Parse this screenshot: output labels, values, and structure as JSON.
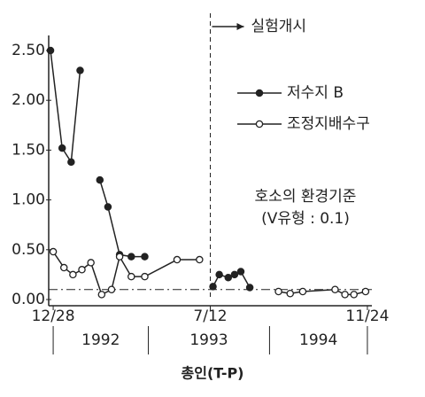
{
  "chart_data": {
    "type": "line",
    "title": "총인(T-P)",
    "xlim": [
      -0.5,
      35.5
    ],
    "xticks": [
      {
        "value": 0,
        "label": "12/28"
      },
      {
        "value": 17.5,
        "label": "7/12"
      },
      {
        "value": 35,
        "label": "11/24"
      }
    ],
    "periods": [
      {
        "label": "1992",
        "start": 0,
        "end": 10.6
      },
      {
        "label": "1993",
        "start": 10.6,
        "end": 24.1
      },
      {
        "label": "1994",
        "start": 24.1,
        "end": 35
      }
    ],
    "ylim": [
      0,
      2.5
    ],
    "yticks": [
      {
        "value": 0,
        "label": "0.00"
      },
      {
        "value": 0.5,
        "label": "0.50"
      },
      {
        "value": 1,
        "label": "1.00"
      },
      {
        "value": 1.5,
        "label": "1.50"
      },
      {
        "value": 2,
        "label": "2.00"
      },
      {
        "value": 2.5,
        "label": "2.50"
      }
    ],
    "event": {
      "x": 17.5,
      "label": "실험개시"
    },
    "reference": {
      "y": 0.1,
      "label": [
        "호소의  환경기준",
        "(V유형 : 0.1)"
      ]
    },
    "series": [
      {
        "name": "저수지 B",
        "color": "#222",
        "marker": "filled",
        "x": [
          -0.3,
          1.0,
          2.0,
          3.0,
          4.0,
          5.2,
          6.1,
          7.4,
          8.7,
          10.2,
          14.0,
          17.8,
          18.5,
          19.5,
          20.2,
          20.9,
          21.9
        ],
        "values": [
          2.5,
          1.52,
          1.38,
          2.3,
          null,
          1.2,
          0.93,
          0.45,
          0.43,
          0.43,
          null,
          0.13,
          0.25,
          0.22,
          0.25,
          0.28,
          0.12
        ]
      },
      {
        "name": "조정지배수구",
        "color": "#222",
        "marker": "open",
        "x": [
          0,
          1.2,
          2.2,
          3.2,
          4.2,
          5.4,
          6.5,
          7.4,
          8.7,
          10.2,
          13.8,
          16.3,
          20,
          25.1,
          26.4,
          27.8,
          31.4,
          32.5,
          33.5,
          34.8
        ],
        "values": [
          0.48,
          0.32,
          0.25,
          0.3,
          0.37,
          0.05,
          0.1,
          0.43,
          0.23,
          0.23,
          0.4,
          0.4,
          null,
          0.08,
          0.06,
          0.08,
          0.1,
          0.05,
          0.05,
          0.08
        ]
      }
    ]
  }
}
